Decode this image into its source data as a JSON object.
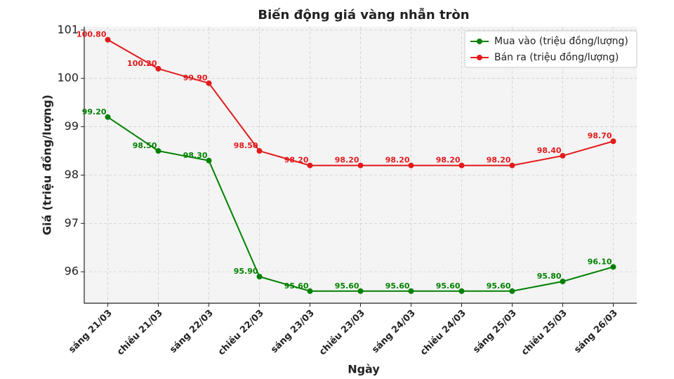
{
  "chart_data": {
    "type": "line",
    "title": "Biến động giá vàng nhẫn tròn",
    "x_label": "Ngày",
    "y_label": "Giá (triệu đồng/lượng)",
    "categories": [
      "sáng 21/03",
      "chiều 21/03",
      "sáng 22/03",
      "chiều 22/03",
      "sáng 23/03",
      "chiều 23/03",
      "sáng 24/03",
      "chiều 24/03",
      "sáng 25/03",
      "chiều 25/03",
      "sáng 26/03"
    ],
    "series": [
      {
        "name": "Mua vào (triệu đồng/lượng)",
        "color": "#008000",
        "values": [
          99.2,
          98.5,
          98.3,
          95.9,
          95.6,
          95.6,
          95.6,
          95.6,
          95.6,
          95.8,
          96.1
        ],
        "value_labels": [
          "99.20",
          "98.50",
          "98.30",
          "95.90",
          "95.60",
          "95.60",
          "95.60",
          "95.60",
          "95.60",
          "95.80",
          "96.10"
        ]
      },
      {
        "name": "Bán ra (triệu đồng/lượng)",
        "color": "#e31a1c",
        "values": [
          100.8,
          100.2,
          99.9,
          98.5,
          98.2,
          98.2,
          98.2,
          98.2,
          98.2,
          98.4,
          98.7
        ],
        "value_labels": [
          "100.80",
          "100.20",
          "99.90",
          "98.50",
          "98.20",
          "98.20",
          "98.20",
          "98.20",
          "98.20",
          "98.40",
          "98.70"
        ]
      }
    ],
    "ylim": [
      95.35,
      101.07
    ],
    "yticks": [
      96,
      97,
      98,
      99,
      100,
      101
    ],
    "grid": true,
    "legend": "upper right"
  }
}
